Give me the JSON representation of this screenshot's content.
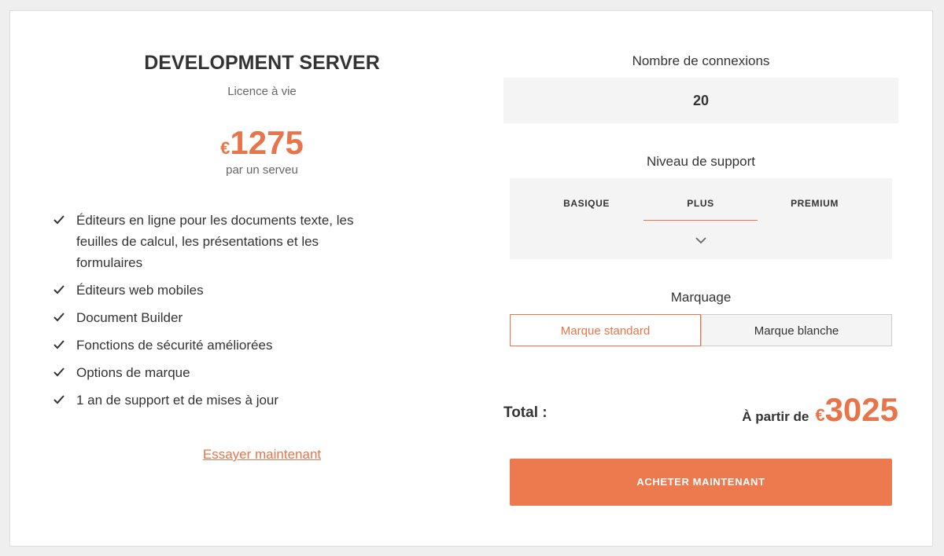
{
  "plan": {
    "title": "DEVELOPMENT SERVER",
    "subtitle": "Licence à vie",
    "currency": "€",
    "price": 1275,
    "price_note": "par un serveu",
    "features": [
      "Éditeurs en ligne pour les documents texte, les feuilles de calcul, les présentations et les formulaires",
      "Éditeurs web mobiles",
      "Document Builder",
      "Fonctions de sécurité améliorées",
      "Options de marque",
      "1 an de support et de mises à jour"
    ],
    "try_link": "Essayer maintenant"
  },
  "options": {
    "connections": {
      "label": "Nombre de connexions",
      "value": 20
    },
    "support": {
      "label": "Niveau de support",
      "tabs": [
        "BASIQUE",
        "PLUS",
        "PREMIUM"
      ]
    },
    "branding": {
      "label": "Marquage",
      "buttons": [
        "Marque standard",
        "Marque blanche"
      ]
    }
  },
  "total": {
    "label": "Total :",
    "prefix": "À partir de",
    "currency": "€",
    "price": 3025
  },
  "buy_button": "ACHETER MAINTENANT"
}
